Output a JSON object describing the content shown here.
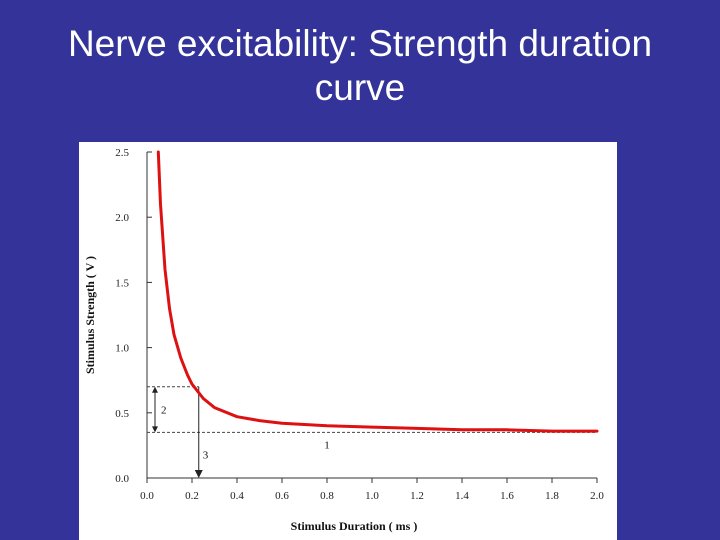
{
  "slide": {
    "title_line1": "Nerve excitability: Strength duration",
    "title_line2": "curve"
  },
  "colors": {
    "background": "#333399",
    "curve": "#dd1111"
  },
  "chart_data": {
    "type": "line",
    "title": "",
    "xlabel": "Stimulus Duration  ( ms )",
    "ylabel": "Stimulus Strength  ( V )",
    "xlim": [
      0.0,
      2.0
    ],
    "ylim": [
      0.0,
      2.5
    ],
    "xticks": [
      "0.0",
      "0.2",
      "0.4",
      "0.6",
      "0.8",
      "1.0",
      "1.2",
      "1.4",
      "1.6",
      "1.8",
      "2.0"
    ],
    "yticks": [
      "0.0",
      "0.5",
      "1.0",
      "1.5",
      "2.0",
      "2.5"
    ],
    "grid": false,
    "legend": "none",
    "series": [
      {
        "x": [
          0.05,
          0.06,
          0.08,
          0.1,
          0.12,
          0.15,
          0.18,
          0.2,
          0.25,
          0.3,
          0.4,
          0.5,
          0.6,
          0.8,
          1.0,
          1.2,
          1.4,
          1.6,
          1.8,
          2.0
        ],
        "y": [
          2.5,
          2.1,
          1.6,
          1.3,
          1.1,
          0.92,
          0.79,
          0.72,
          0.61,
          0.54,
          0.47,
          0.44,
          0.42,
          0.4,
          0.39,
          0.38,
          0.37,
          0.37,
          0.36,
          0.36
        ]
      }
    ],
    "annotations": {
      "rheobase": {
        "label": "1",
        "y": 0.35
      },
      "double_rheobase": {
        "label": "2",
        "y_from": 0.35,
        "y_to": 0.7
      },
      "chronaxie": {
        "label": "3",
        "x": 0.23
      }
    }
  }
}
